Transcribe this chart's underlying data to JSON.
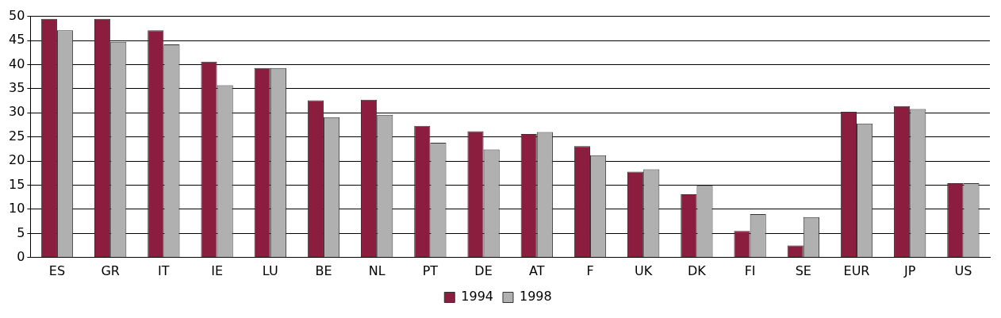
{
  "chart_data": {
    "type": "bar",
    "categories": [
      "ES",
      "GR",
      "IT",
      "IE",
      "LU",
      "BE",
      "NL",
      "PT",
      "DE",
      "AT",
      "F",
      "UK",
      "DK",
      "FI",
      "SE",
      "EUR",
      "JP",
      "US"
    ],
    "series": [
      {
        "name": "1994",
        "color": "#8b1e3f",
        "values": [
          49.5,
          49.5,
          47.1,
          40.6,
          39.3,
          32.6,
          32.7,
          27.3,
          26.2,
          25.6,
          23.1,
          17.8,
          13.1,
          5.5,
          2.5,
          30.2,
          31.4,
          15.4
        ]
      },
      {
        "name": "1998",
        "color": "#b0b0b0",
        "values": [
          47.1,
          44.7,
          44.2,
          35.7,
          39.3,
          29.1,
          29.6,
          23.8,
          22.4,
          26.0,
          21.2,
          18.3,
          14.9,
          9.0,
          8.4,
          27.8,
          30.8,
          15.4
        ]
      }
    ],
    "ylim": [
      0,
      50
    ],
    "yticks": [
      0,
      5,
      10,
      15,
      20,
      25,
      30,
      35,
      40,
      45,
      50
    ],
    "grid": "y",
    "legend": "bottom"
  }
}
